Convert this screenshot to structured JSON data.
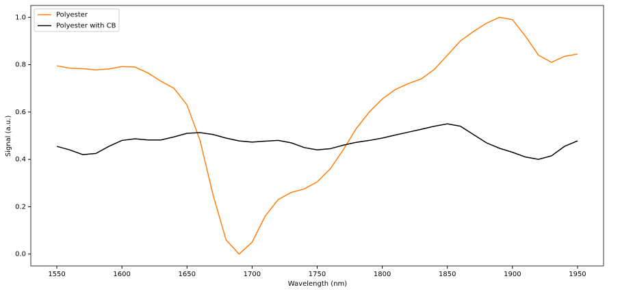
{
  "chart_data": {
    "type": "line",
    "xlabel": "Wavelength (nm)",
    "ylabel": "Signal (a.u.)",
    "x": [
      1550,
      1560,
      1570,
      1580,
      1590,
      1600,
      1610,
      1620,
      1630,
      1640,
      1650,
      1660,
      1670,
      1680,
      1690,
      1700,
      1710,
      1720,
      1730,
      1740,
      1750,
      1760,
      1770,
      1780,
      1790,
      1800,
      1810,
      1820,
      1830,
      1840,
      1850,
      1860,
      1870,
      1880,
      1890,
      1900,
      1910,
      1920,
      1930,
      1940,
      1950
    ],
    "series": [
      {
        "name": "Polyester",
        "color": "#ff7f0e",
        "values": [
          0.795,
          0.785,
          0.783,
          0.778,
          0.782,
          0.792,
          0.79,
          0.765,
          0.73,
          0.7,
          0.63,
          0.48,
          0.25,
          0.06,
          0.0,
          0.05,
          0.16,
          0.23,
          0.26,
          0.275,
          0.305,
          0.36,
          0.44,
          0.53,
          0.6,
          0.655,
          0.695,
          0.72,
          0.74,
          0.78,
          0.84,
          0.9,
          0.94,
          0.975,
          1.0,
          0.99,
          0.92,
          0.84,
          0.81,
          0.835,
          0.845
        ]
      },
      {
        "name": "Polyester with CB",
        "color": "#000000",
        "values": [
          0.455,
          0.44,
          0.42,
          0.425,
          0.455,
          0.48,
          0.487,
          0.482,
          0.482,
          0.495,
          0.51,
          0.513,
          0.505,
          0.49,
          0.478,
          0.473,
          0.477,
          0.48,
          0.47,
          0.45,
          0.44,
          0.445,
          0.46,
          0.472,
          0.48,
          0.49,
          0.503,
          0.515,
          0.527,
          0.54,
          0.55,
          0.54,
          0.505,
          0.47,
          0.447,
          0.43,
          0.41,
          0.4,
          0.415,
          0.455,
          0.478
        ]
      }
    ],
    "xlim": [
      1530,
      1970
    ],
    "ylim": [
      -0.05,
      1.05
    ],
    "xticks": [
      1550,
      1600,
      1650,
      1700,
      1750,
      1800,
      1850,
      1900,
      1950
    ],
    "yticks": [
      {
        "value": 0,
        "label": "0.0"
      },
      0.2,
      0.4,
      0.6,
      0.8,
      {
        "value": 1,
        "label": "1.0"
      }
    ],
    "grid": false,
    "legend": "upper left"
  }
}
